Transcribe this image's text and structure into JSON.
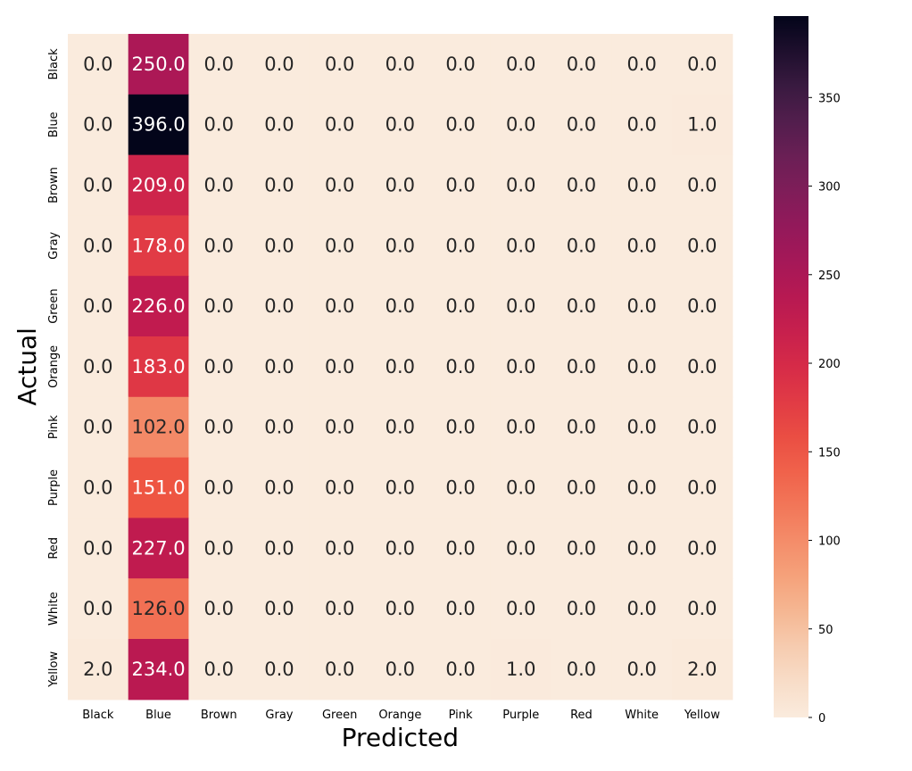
{
  "chart_data": {
    "type": "heatmap",
    "title": "",
    "xlabel": "Predicted",
    "ylabel": "Actual",
    "x_categories": [
      "Black",
      "Blue",
      "Brown",
      "Gray",
      "Green",
      "Orange",
      "Pink",
      "Purple",
      "Red",
      "White",
      "Yellow"
    ],
    "y_categories": [
      "Black",
      "Blue",
      "Brown",
      "Gray",
      "Green",
      "Orange",
      "Pink",
      "Purple",
      "Red",
      "White",
      "Yellow"
    ],
    "values": [
      [
        0,
        250,
        0,
        0,
        0,
        0,
        0,
        0,
        0,
        0,
        0
      ],
      [
        0,
        396,
        0,
        0,
        0,
        0,
        0,
        0,
        0,
        0,
        1
      ],
      [
        0,
        209,
        0,
        0,
        0,
        0,
        0,
        0,
        0,
        0,
        0
      ],
      [
        0,
        178,
        0,
        0,
        0,
        0,
        0,
        0,
        0,
        0,
        0
      ],
      [
        0,
        226,
        0,
        0,
        0,
        0,
        0,
        0,
        0,
        0,
        0
      ],
      [
        0,
        183,
        0,
        0,
        0,
        0,
        0,
        0,
        0,
        0,
        0
      ],
      [
        0,
        102,
        0,
        0,
        0,
        0,
        0,
        0,
        0,
        0,
        0
      ],
      [
        0,
        151,
        0,
        0,
        0,
        0,
        0,
        0,
        0,
        0,
        0
      ],
      [
        0,
        227,
        0,
        0,
        0,
        0,
        0,
        0,
        0,
        0,
        0
      ],
      [
        0,
        126,
        0,
        0,
        0,
        0,
        0,
        0,
        0,
        0,
        0
      ],
      [
        2,
        234,
        0,
        0,
        0,
        0,
        0,
        1,
        0,
        0,
        2
      ]
    ],
    "value_format": "0.0",
    "colorscale": "rocket_r",
    "colorbar": {
      "range": [
        0,
        396
      ],
      "ticks": [
        0,
        50,
        100,
        150,
        200,
        250,
        300,
        350
      ]
    },
    "grid": false
  }
}
